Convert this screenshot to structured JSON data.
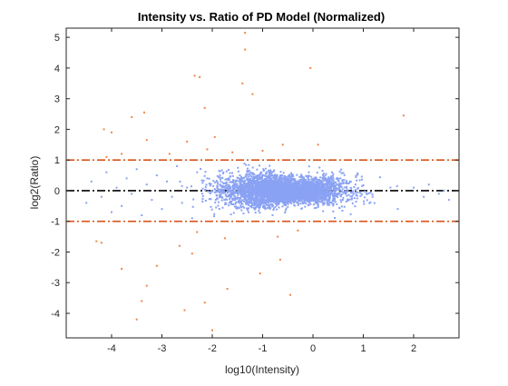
{
  "chart_data": {
    "type": "scatter",
    "title": "Intensity vs. Ratio of PD Model (Normalized)",
    "xlabel": "log10(Intensity)",
    "ylabel": "log2(Ratio)",
    "xlim": [
      -4.9,
      2.9
    ],
    "ylim": [
      -4.8,
      5.3
    ],
    "xticks": [
      -4,
      -3,
      -2,
      -1,
      0,
      1,
      2
    ],
    "yticks": [
      -4,
      -3,
      -2,
      -1,
      0,
      1,
      2,
      3,
      4,
      5
    ],
    "grid": false,
    "legend": "none",
    "reference_lines": [
      {
        "y": 1,
        "style": "dash-dot",
        "color": "#D95319"
      },
      {
        "y": 0,
        "style": "dash-dot",
        "color": "#000000"
      },
      {
        "y": -1,
        "style": "dash-dot",
        "color": "#D95319"
      }
    ],
    "series": [
      {
        "color": "#8AA2F3",
        "description_points": "dense cloud within |log2(Ratio)| <= 1",
        "points": [
          [
            -4.5,
            -0.4
          ],
          [
            -4.4,
            0.3
          ],
          [
            -4.2,
            -0.2
          ],
          [
            -4.1,
            0.6
          ],
          [
            -4.0,
            -0.7
          ],
          [
            -3.9,
            0.1
          ],
          [
            -3.8,
            -0.5
          ],
          [
            -3.7,
            0.4
          ],
          [
            -3.6,
            -0.1
          ],
          [
            -3.5,
            0.7
          ],
          [
            -3.4,
            -0.8
          ],
          [
            -3.3,
            0.2
          ],
          [
            -3.2,
            -0.3
          ],
          [
            -3.1,
            0.5
          ],
          [
            -3.0,
            -0.6
          ],
          [
            -2.9,
            0.3
          ],
          [
            -2.8,
            -0.2
          ],
          [
            -2.7,
            0.8
          ],
          [
            -2.6,
            -0.4
          ],
          [
            -2.5,
            0.1
          ],
          [
            -2.4,
            -0.9
          ],
          [
            -2.3,
            0.6
          ],
          [
            -2.2,
            -0.1
          ],
          [
            -2.1,
            0.4
          ],
          [
            2.0,
            0.1
          ],
          [
            2.2,
            -0.2
          ],
          [
            2.3,
            0.2
          ],
          [
            2.5,
            -0.1
          ],
          [
            2.6,
            0.0
          ],
          [
            2.7,
            -0.3
          ]
        ]
      },
      {
        "color": "#F0864A",
        "description_points": "outliers with |log2(Ratio)| > 1",
        "points": [
          [
            -1.35,
            5.15
          ],
          [
            -0.05,
            4.0
          ],
          [
            -1.35,
            4.6
          ],
          [
            -2.35,
            3.75
          ],
          [
            -2.25,
            3.7
          ],
          [
            -2.15,
            2.7
          ],
          [
            -1.2,
            3.15
          ],
          [
            -1.4,
            3.5
          ],
          [
            -3.35,
            2.55
          ],
          [
            -3.6,
            2.4
          ],
          [
            -4.15,
            2.0
          ],
          [
            -4.0,
            1.9
          ],
          [
            -3.3,
            1.65
          ],
          [
            -2.5,
            1.6
          ],
          [
            -1.95,
            1.75
          ],
          [
            0.1,
            1.5
          ],
          [
            1.8,
            2.45
          ],
          [
            -0.6,
            1.5
          ],
          [
            -1.0,
            1.3
          ],
          [
            -3.8,
            1.2
          ],
          [
            -4.1,
            1.1
          ],
          [
            -2.85,
            1.2
          ],
          [
            -2.1,
            1.35
          ],
          [
            -1.6,
            1.25
          ],
          [
            -4.3,
            -1.65
          ],
          [
            -4.2,
            -1.7
          ],
          [
            -3.8,
            -2.55
          ],
          [
            -3.3,
            -3.1
          ],
          [
            -3.4,
            -3.6
          ],
          [
            -3.1,
            -2.45
          ],
          [
            -2.65,
            -1.8
          ],
          [
            -2.4,
            -2.05
          ],
          [
            -2.0,
            -4.55
          ],
          [
            -2.55,
            -3.9
          ],
          [
            -2.15,
            -3.65
          ],
          [
            -1.7,
            -3.2
          ],
          [
            -0.45,
            -3.4
          ],
          [
            -1.05,
            -2.7
          ],
          [
            -0.65,
            -2.25
          ],
          [
            -1.75,
            -1.55
          ],
          [
            -2.3,
            -1.35
          ],
          [
            -0.3,
            -1.3
          ],
          [
            -0.7,
            -1.5
          ],
          [
            -3.5,
            -4.2
          ]
        ]
      }
    ]
  }
}
